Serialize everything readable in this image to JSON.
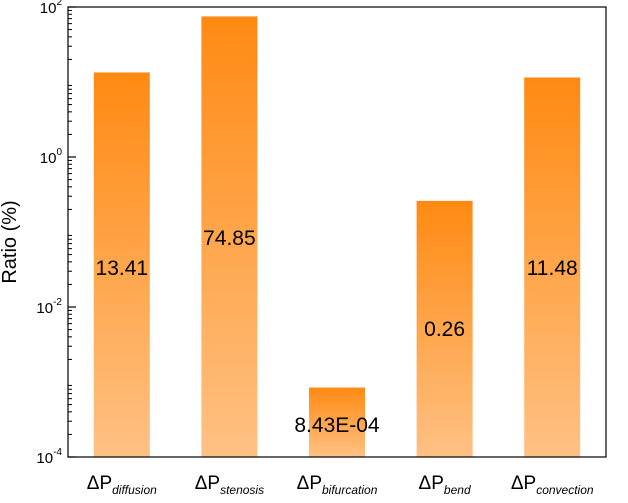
{
  "chart_data": {
    "type": "bar",
    "scale": "log",
    "ylabel": "Ratio (%)",
    "ylim": [
      0.0001,
      100
    ],
    "yticks": [
      {
        "value": 100,
        "base": "10",
        "exp": "2"
      },
      {
        "value": 1,
        "base": "10",
        "exp": "0"
      },
      {
        "value": 0.01,
        "base": "10",
        "exp": "-2"
      },
      {
        "value": 0.0001,
        "base": "10",
        "exp": "-4"
      }
    ],
    "categories": [
      {
        "main": "ΔP",
        "sub": "diffusion"
      },
      {
        "main": "ΔP",
        "sub": "stenosis"
      },
      {
        "main": "ΔP",
        "sub": "bifurcation"
      },
      {
        "main": "ΔP",
        "sub": "bend"
      },
      {
        "main": "ΔP",
        "sub": "convection"
      }
    ],
    "values": [
      13.41,
      74.85,
      0.000843,
      0.26,
      11.48
    ],
    "value_labels": [
      "13.41",
      "74.85",
      "8.43E-04",
      "0.26",
      "11.48"
    ],
    "grid": false,
    "colors": {
      "bar_top": "#ff8a12",
      "bar_bottom": "#ffc184",
      "axis": "#000000"
    }
  }
}
